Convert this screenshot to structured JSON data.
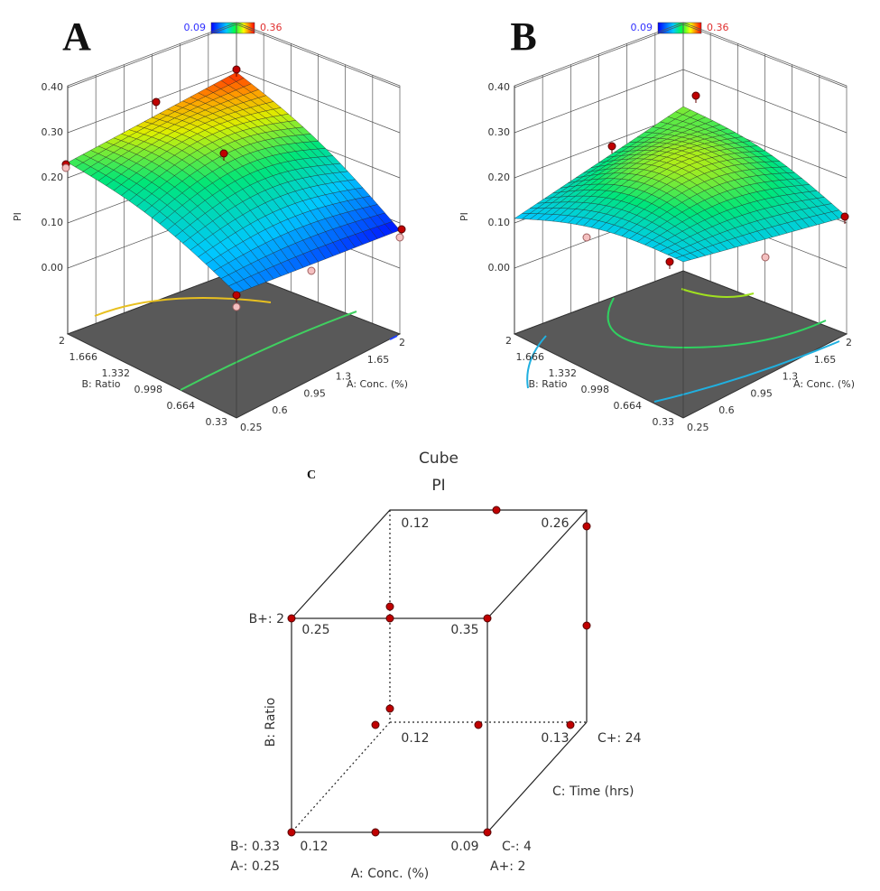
{
  "panels": [
    {
      "label": "A",
      "colorbar": {
        "min_label": "0.09",
        "max_label": "0.36"
      },
      "z_axis": {
        "title": "PI",
        "ticks": [
          "0.40",
          "0.30",
          "0.20",
          "0.10",
          "0.00"
        ]
      },
      "b_axis": {
        "title": "B: Ratio",
        "ticks": [
          "2",
          "1.666",
          "1.332",
          "0.998",
          "0.664",
          "0.33"
        ]
      },
      "a_axis": {
        "title": "A: Conc. (%)",
        "ticks": [
          "0.25",
          "0.6",
          "0.95",
          "1.3",
          "1.65",
          "2"
        ]
      }
    },
    {
      "label": "B",
      "colorbar": {
        "min_label": "0.09",
        "max_label": "0.36"
      },
      "z_axis": {
        "title": "PI",
        "ticks": [
          "0.40",
          "0.30",
          "0.20",
          "0.10",
          "0.00"
        ]
      },
      "b_axis": {
        "title": "B: Ratio",
        "ticks": [
          "2",
          "1.666",
          "1.332",
          "0.998",
          "0.664",
          "0.33"
        ]
      },
      "a_axis": {
        "title": "A: Conc. (%)",
        "ticks": [
          "0.25",
          "0.6",
          "0.95",
          "1.3",
          "1.65",
          "2"
        ]
      }
    }
  ],
  "cube": {
    "label": "C",
    "title": "Cube",
    "subtitle": "PI",
    "back_top_left": "0.12",
    "back_top_right": "0.26",
    "front_top_left": "0.25",
    "front_top_right": "0.35",
    "back_bottom_left": "0.12",
    "back_bottom_right": "0.13",
    "front_bottom_left": "0.12",
    "front_bottom_right": "0.09",
    "b_high": "B+: 2",
    "b_low": "B-: 0.33",
    "a_low": "A-: 0.25",
    "a_high": "A+: 2",
    "a_title": "A: Conc. (%)",
    "c_low": "C-: 4",
    "c_high": "C+: 24",
    "c_title": "C: Time (hrs)",
    "b_title": "B: Ratio"
  }
}
